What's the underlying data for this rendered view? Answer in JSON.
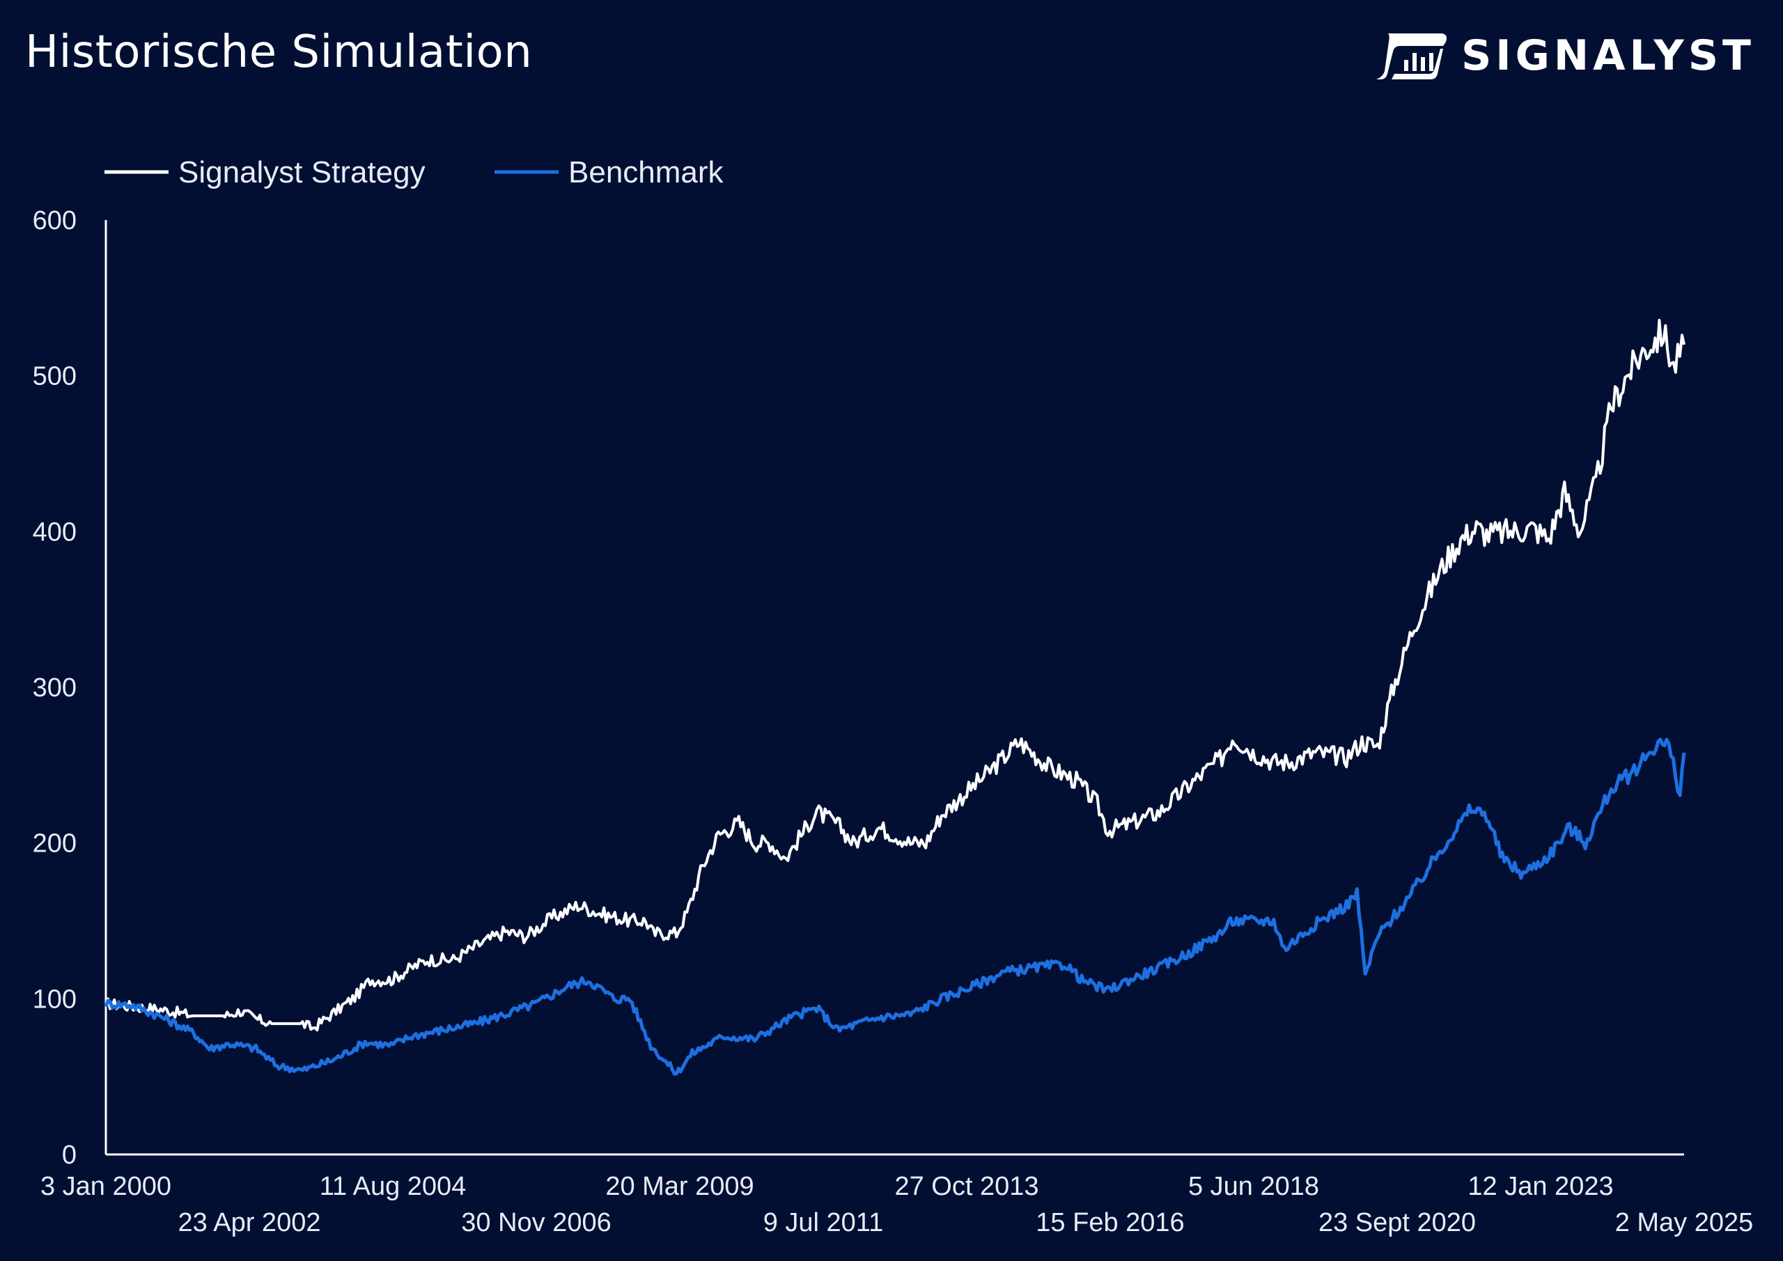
{
  "header": {
    "title": "Historische Simulation",
    "brand": "SIGNALYST",
    "brand_icon": "signalyst-logo-icon"
  },
  "colors": {
    "background": "#020f33",
    "strategy": "#ffffff",
    "benchmark": "#1e6fe0",
    "axis": "#ffffff",
    "text": "#e8ecf5"
  },
  "chart_data": {
    "type": "line",
    "title": "Historische Simulation",
    "xlabel": "",
    "ylabel": "",
    "ylim": [
      0,
      600
    ],
    "yticks": [
      0,
      100,
      200,
      300,
      400,
      500,
      600
    ],
    "xlim": [
      "2000-01-03",
      "2025-05-02"
    ],
    "xticks": [
      {
        "date": "2000-01-03",
        "label": "3 Jan 2000",
        "row": 1
      },
      {
        "date": "2002-04-23",
        "label": "23 Apr 2002",
        "row": 2
      },
      {
        "date": "2004-08-11",
        "label": "11 Aug 2004",
        "row": 1
      },
      {
        "date": "2006-11-30",
        "label": "30 Nov 2006",
        "row": 2
      },
      {
        "date": "2009-03-20",
        "label": "20 Mar 2009",
        "row": 1
      },
      {
        "date": "2011-07-09",
        "label": "9 Jul 2011",
        "row": 2
      },
      {
        "date": "2013-10-27",
        "label": "27 Oct 2013",
        "row": 1
      },
      {
        "date": "2016-02-15",
        "label": "15 Feb 2016",
        "row": 2
      },
      {
        "date": "2018-06-05",
        "label": "5 Jun 2018",
        "row": 1
      },
      {
        "date": "2020-09-23",
        "label": "23 Sept 2020",
        "row": 2
      },
      {
        "date": "2023-01-12",
        "label": "12 Jan 2023",
        "row": 1
      },
      {
        "date": "2025-05-02",
        "label": "2 May 2025",
        "row": 2
      }
    ],
    "legend": "top-left",
    "grid": false,
    "series": [
      {
        "name": "Signalyst Strategy",
        "color": "#ffffff",
        "points": [
          [
            "2000-01-03",
            97
          ],
          [
            "2000-06-01",
            95
          ],
          [
            "2000-12-01",
            93
          ],
          [
            "2001-06-01",
            89
          ],
          [
            "2001-12-01",
            89
          ],
          [
            "2002-03-01",
            92
          ],
          [
            "2002-06-01",
            87
          ],
          [
            "2002-09-01",
            84
          ],
          [
            "2003-03-01",
            84
          ],
          [
            "2003-05-01",
            81
          ],
          [
            "2003-09-01",
            91
          ],
          [
            "2004-01-01",
            101
          ],
          [
            "2004-04-01",
            112
          ],
          [
            "2004-08-01",
            112
          ],
          [
            "2004-11-01",
            118
          ],
          [
            "2005-03-01",
            125
          ],
          [
            "2005-08-01",
            125
          ],
          [
            "2006-01-01",
            135
          ],
          [
            "2006-06-01",
            143
          ],
          [
            "2006-10-01",
            140
          ],
          [
            "2007-03-01",
            152
          ],
          [
            "2007-08-01",
            160
          ],
          [
            "2008-01-01",
            154
          ],
          [
            "2008-06-01",
            150
          ],
          [
            "2008-09-01",
            150
          ],
          [
            "2008-10-15",
            142
          ],
          [
            "2009-03-01",
            142
          ],
          [
            "2009-05-01",
            155
          ],
          [
            "2009-08-01",
            185
          ],
          [
            "2009-11-01",
            205
          ],
          [
            "2010-03-01",
            213
          ],
          [
            "2010-06-01",
            200
          ],
          [
            "2010-09-01",
            200
          ],
          [
            "2010-12-01",
            190
          ],
          [
            "2011-03-01",
            205
          ],
          [
            "2011-06-01",
            220
          ],
          [
            "2011-10-01",
            212
          ],
          [
            "2012-01-01",
            200
          ],
          [
            "2012-06-01",
            210
          ],
          [
            "2012-12-01",
            200
          ],
          [
            "2013-03-01",
            200
          ],
          [
            "2013-06-01",
            218
          ],
          [
            "2013-10-01",
            230
          ],
          [
            "2014-03-01",
            245
          ],
          [
            "2014-09-01",
            265
          ],
          [
            "2015-03-01",
            248
          ],
          [
            "2015-08-01",
            240
          ],
          [
            "2015-12-01",
            225
          ],
          [
            "2016-02-01",
            208
          ],
          [
            "2016-06-01",
            212
          ],
          [
            "2016-12-01",
            220
          ],
          [
            "2017-06-01",
            238
          ],
          [
            "2017-12-01",
            255
          ],
          [
            "2018-02-01",
            268
          ],
          [
            "2018-06-01",
            258
          ],
          [
            "2018-10-01",
            252
          ],
          [
            "2019-01-01",
            252
          ],
          [
            "2019-06-01",
            258
          ],
          [
            "2019-12-01",
            255
          ],
          [
            "2020-03-01",
            265
          ],
          [
            "2020-06-01",
            262
          ],
          [
            "2020-09-01",
            300
          ],
          [
            "2021-01-01",
            340
          ],
          [
            "2021-06-01",
            375
          ],
          [
            "2021-10-01",
            395
          ],
          [
            "2022-01-01",
            402
          ],
          [
            "2022-03-01",
            398
          ],
          [
            "2022-08-01",
            400
          ],
          [
            "2022-12-01",
            402
          ],
          [
            "2023-03-01",
            395
          ],
          [
            "2023-06-01",
            425
          ],
          [
            "2023-09-01",
            400
          ],
          [
            "2023-12-01",
            430
          ],
          [
            "2024-03-01",
            480
          ],
          [
            "2024-06-01",
            500
          ],
          [
            "2024-09-01",
            515
          ],
          [
            "2025-01-01",
            528
          ],
          [
            "2025-03-01",
            505
          ],
          [
            "2025-05-02",
            520
          ]
        ]
      },
      {
        "name": "Benchmark",
        "color": "#1e6fe0",
        "points": [
          [
            "2000-01-03",
            97
          ],
          [
            "2000-06-01",
            96
          ],
          [
            "2000-12-01",
            88
          ],
          [
            "2001-06-01",
            78
          ],
          [
            "2001-09-01",
            68
          ],
          [
            "2002-01-01",
            71
          ],
          [
            "2002-06-01",
            68
          ],
          [
            "2002-10-01",
            57
          ],
          [
            "2003-03-01",
            54
          ],
          [
            "2003-09-01",
            61
          ],
          [
            "2004-03-01",
            72
          ],
          [
            "2004-08-01",
            70
          ],
          [
            "2004-12-01",
            76
          ],
          [
            "2005-06-01",
            80
          ],
          [
            "2005-12-01",
            84
          ],
          [
            "2006-06-01",
            90
          ],
          [
            "2006-12-01",
            97
          ],
          [
            "2007-06-01",
            108
          ],
          [
            "2007-10-01",
            112
          ],
          [
            "2008-03-01",
            100
          ],
          [
            "2008-06-01",
            100
          ],
          [
            "2008-10-01",
            70
          ],
          [
            "2009-03-01",
            52
          ],
          [
            "2009-06-01",
            65
          ],
          [
            "2009-12-01",
            76
          ],
          [
            "2010-06-01",
            74
          ],
          [
            "2011-01-01",
            88
          ],
          [
            "2011-06-01",
            94
          ],
          [
            "2011-10-01",
            80
          ],
          [
            "2012-06-01",
            88
          ],
          [
            "2012-12-01",
            90
          ],
          [
            "2013-06-01",
            100
          ],
          [
            "2013-12-01",
            108
          ],
          [
            "2014-06-01",
            117
          ],
          [
            "2014-12-01",
            120
          ],
          [
            "2015-06-01",
            122
          ],
          [
            "2015-09-01",
            112
          ],
          [
            "2016-02-01",
            105
          ],
          [
            "2016-06-01",
            112
          ],
          [
            "2016-12-01",
            120
          ],
          [
            "2017-06-01",
            130
          ],
          [
            "2017-12-01",
            143
          ],
          [
            "2018-02-01",
            150
          ],
          [
            "2018-10-01",
            150
          ],
          [
            "2018-12-01",
            132
          ],
          [
            "2019-06-01",
            148
          ],
          [
            "2019-12-01",
            160
          ],
          [
            "2020-02-01",
            168
          ],
          [
            "2020-03-20",
            115
          ],
          [
            "2020-06-01",
            140
          ],
          [
            "2020-12-01",
            165
          ],
          [
            "2021-06-01",
            195
          ],
          [
            "2021-12-01",
            222
          ],
          [
            "2022-03-01",
            218
          ],
          [
            "2022-06-01",
            190
          ],
          [
            "2022-10-01",
            180
          ],
          [
            "2023-03-01",
            192
          ],
          [
            "2023-07-01",
            210
          ],
          [
            "2023-10-01",
            200
          ],
          [
            "2024-03-01",
            235
          ],
          [
            "2024-07-01",
            245
          ],
          [
            "2024-12-01",
            265
          ],
          [
            "2025-02-01",
            262
          ],
          [
            "2025-04-08",
            232
          ],
          [
            "2025-05-02",
            258
          ]
        ]
      }
    ]
  }
}
